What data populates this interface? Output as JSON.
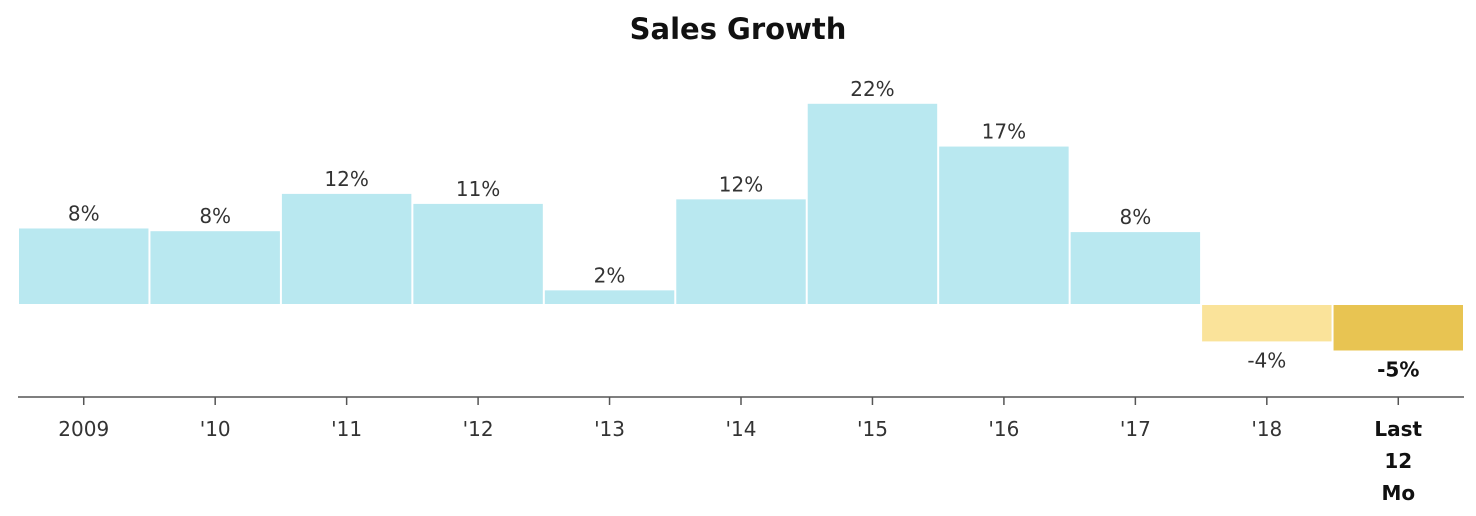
{
  "chart_data": {
    "type": "bar",
    "title": "Sales Growth",
    "xlabel": "",
    "ylabel": "",
    "categories": [
      "2009",
      "'10",
      "'11",
      "'12",
      "'13",
      "'14",
      "'15",
      "'16",
      "'17",
      "'18",
      "Last 12 Mo"
    ],
    "tick_labels": [
      [
        "2009"
      ],
      [
        "'10"
      ],
      [
        "'11"
      ],
      [
        "'12"
      ],
      [
        "'13"
      ],
      [
        "'14"
      ],
      [
        "'15"
      ],
      [
        "'16"
      ],
      [
        "'17"
      ],
      [
        "'18"
      ],
      [
        "Last",
        "12",
        "Mo"
      ]
    ],
    "values": [
      8.3,
      8.0,
      12.1,
      11.0,
      1.5,
      11.5,
      22.0,
      17.3,
      7.9,
      -4.0,
      -5.0
    ],
    "value_labels": [
      "8%",
      "8%",
      "12%",
      "11%",
      "2%",
      "12%",
      "22%",
      "17%",
      "8%",
      "-4%",
      "-5%"
    ],
    "ylim": [
      -10,
      23
    ],
    "grid": false,
    "emphasized_category": "Last 12 Mo",
    "colors": {
      "positive": "#b9e8f0",
      "negative": "#fae39a",
      "emphasized_negative": "#e8c452",
      "axis": "#555555"
    }
  }
}
